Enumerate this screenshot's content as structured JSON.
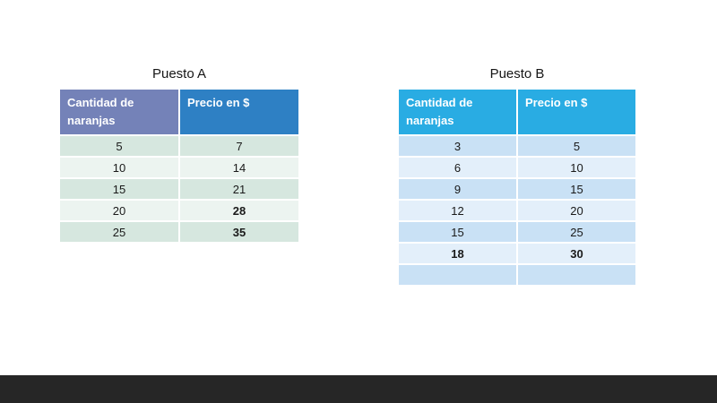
{
  "slide": {
    "background_color": "#ffffff",
    "footer_bar_color": "#262626"
  },
  "table_a": {
    "title": "Puesto A",
    "headers": {
      "col1": "Cantidad de naranjas",
      "col2": "Precio en $"
    },
    "colors": {
      "header1": "#7482B8",
      "header2": "#2E80C4",
      "row_odd": "#D6E7DF",
      "row_even": "#ECF4F0"
    },
    "rows": [
      {
        "cells": [
          {
            "text": "5",
            "bold": false
          },
          {
            "text": "7",
            "bold": false
          }
        ]
      },
      {
        "cells": [
          {
            "text": "10",
            "bold": false
          },
          {
            "text": "14",
            "bold": false
          }
        ]
      },
      {
        "cells": [
          {
            "text": "15",
            "bold": false
          },
          {
            "text": "21",
            "bold": false
          }
        ]
      },
      {
        "cells": [
          {
            "text": "20",
            "bold": false
          },
          {
            "text": "28",
            "bold": true
          }
        ]
      },
      {
        "cells": [
          {
            "text": "25",
            "bold": false
          },
          {
            "text": "35",
            "bold": true
          }
        ]
      }
    ]
  },
  "table_b": {
    "title": "Puesto B",
    "headers": {
      "col1": "Cantidad de naranjas",
      "col2": "Precio en $"
    },
    "colors": {
      "header1": "#29ACE3",
      "header2": "#29ACE3",
      "row_odd": "#C9E1F5",
      "row_even": "#E3EFFA"
    },
    "rows": [
      {
        "cells": [
          {
            "text": "3",
            "bold": false
          },
          {
            "text": "5",
            "bold": false
          }
        ]
      },
      {
        "cells": [
          {
            "text": "6",
            "bold": false
          },
          {
            "text": "10",
            "bold": false
          }
        ]
      },
      {
        "cells": [
          {
            "text": "9",
            "bold": false
          },
          {
            "text": "15",
            "bold": false
          }
        ]
      },
      {
        "cells": [
          {
            "text": "12",
            "bold": false
          },
          {
            "text": "20",
            "bold": false
          }
        ]
      },
      {
        "cells": [
          {
            "text": "15",
            "bold": false
          },
          {
            "text": "25",
            "bold": false
          }
        ]
      },
      {
        "cells": [
          {
            "text": "18",
            "bold": true
          },
          {
            "text": "30",
            "bold": true
          }
        ]
      },
      {
        "cells": [
          {
            "text": "",
            "bold": false
          },
          {
            "text": "",
            "bold": false
          }
        ]
      }
    ]
  }
}
